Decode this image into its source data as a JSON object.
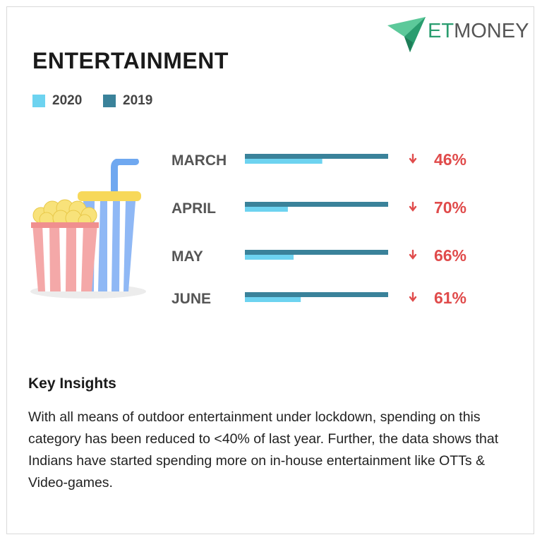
{
  "brand": {
    "logo_et": "ET",
    "logo_money": "MONEY",
    "accent": "#2a9d6f"
  },
  "title": "ENTERTAINMENT",
  "legend": [
    {
      "label": "2020",
      "color": "#6dd3f0"
    },
    {
      "label": "2019",
      "color": "#3a829a"
    }
  ],
  "chart_data": {
    "type": "bar",
    "orientation": "horizontal",
    "categories": [
      "MARCH",
      "APRIL",
      "MAY",
      "JUNE"
    ],
    "series": [
      {
        "name": "2020",
        "values": [
          54,
          30,
          34,
          39
        ],
        "color": "#6dd3f0"
      },
      {
        "name": "2019",
        "values": [
          100,
          100,
          100,
          100
        ],
        "color": "#3a829a"
      }
    ],
    "change_labels": [
      "46%",
      "70%",
      "66%",
      "61%"
    ],
    "change_direction": "down",
    "change_color": "#e04b4b",
    "xlim": [
      0,
      100
    ],
    "grid": false,
    "legend_position": "top-left"
  },
  "insights": {
    "title": "Key Insights",
    "text": "With all means of outdoor entertainment under lockdown, spending on this category has been reduced to <40% of last year. Further, the data shows that Indians have started spending more on in-house entertainment like OTTs & Video-games."
  }
}
